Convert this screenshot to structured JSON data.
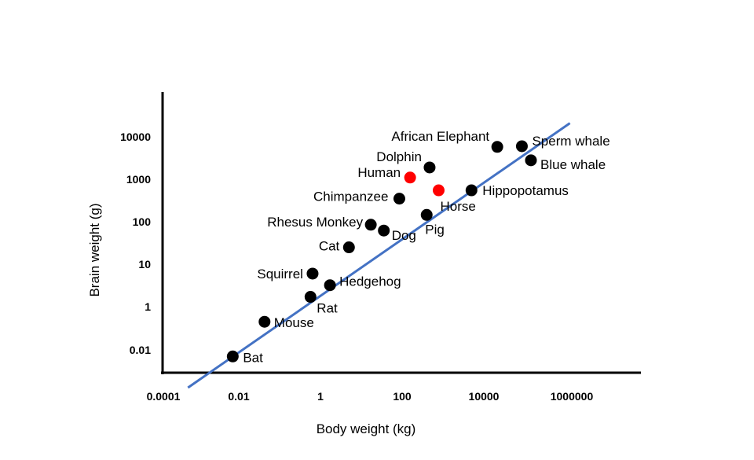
{
  "chart_data": {
    "type": "scatter",
    "title": "",
    "xlabel": "Body weight (kg)",
    "ylabel": "Brain weight (g)",
    "x_scale": "log",
    "y_scale": "log",
    "x_ticks": [
      "0.0001",
      "0.01",
      "1",
      "100",
      "10000",
      "1000000"
    ],
    "y_ticks": [
      "0.01",
      "1",
      "10",
      "100",
      "1000",
      "10000"
    ],
    "grid": false,
    "legend": "none",
    "points": [
      {
        "name": "Bat",
        "x": 0.005,
        "y": 0.005,
        "color": "#000000"
      },
      {
        "name": "Mouse",
        "x": 0.03,
        "y": 0.2,
        "color": "#000000"
      },
      {
        "name": "Rat",
        "x": 0.4,
        "y": 1.7,
        "color": "#000000"
      },
      {
        "name": "Squirrel",
        "x": 0.45,
        "y": 6,
        "color": "#000000"
      },
      {
        "name": "Hedgehog",
        "x": 1.2,
        "y": 3.2,
        "color": "#000000"
      },
      {
        "name": "Cat",
        "x": 3.5,
        "y": 25,
        "color": "#000000"
      },
      {
        "name": "Rhesus Monkey",
        "x": 12,
        "y": 85,
        "color": "#000000"
      },
      {
        "name": "Dog",
        "x": 25,
        "y": 62,
        "color": "#000000"
      },
      {
        "name": "Chimpanzee",
        "x": 60,
        "y": 350,
        "color": "#000000"
      },
      {
        "name": "Human",
        "x": 110,
        "y": 1100,
        "color": "#ff0000"
      },
      {
        "name": "Pig",
        "x": 280,
        "y": 145,
        "color": "#000000"
      },
      {
        "name": "Dolphin",
        "x": 330,
        "y": 1900,
        "color": "#000000"
      },
      {
        "name": "Horse",
        "x": 550,
        "y": 550,
        "color": "#ff0000"
      },
      {
        "name": "Hippopotamus",
        "x": 3500,
        "y": 550,
        "color": "#000000"
      },
      {
        "name": "African Elephant",
        "x": 15000,
        "y": 5800,
        "color": "#000000"
      },
      {
        "name": "Sperm whale",
        "x": 60000,
        "y": 6000,
        "color": "#000000"
      },
      {
        "name": "Blue whale",
        "x": 100000,
        "y": 2800,
        "color": "#000000"
      }
    ],
    "trendline": {
      "x": [
        0.0004,
        900000
      ],
      "y": [
        0.00018,
        21000
      ],
      "color": "#4472c4"
    }
  }
}
